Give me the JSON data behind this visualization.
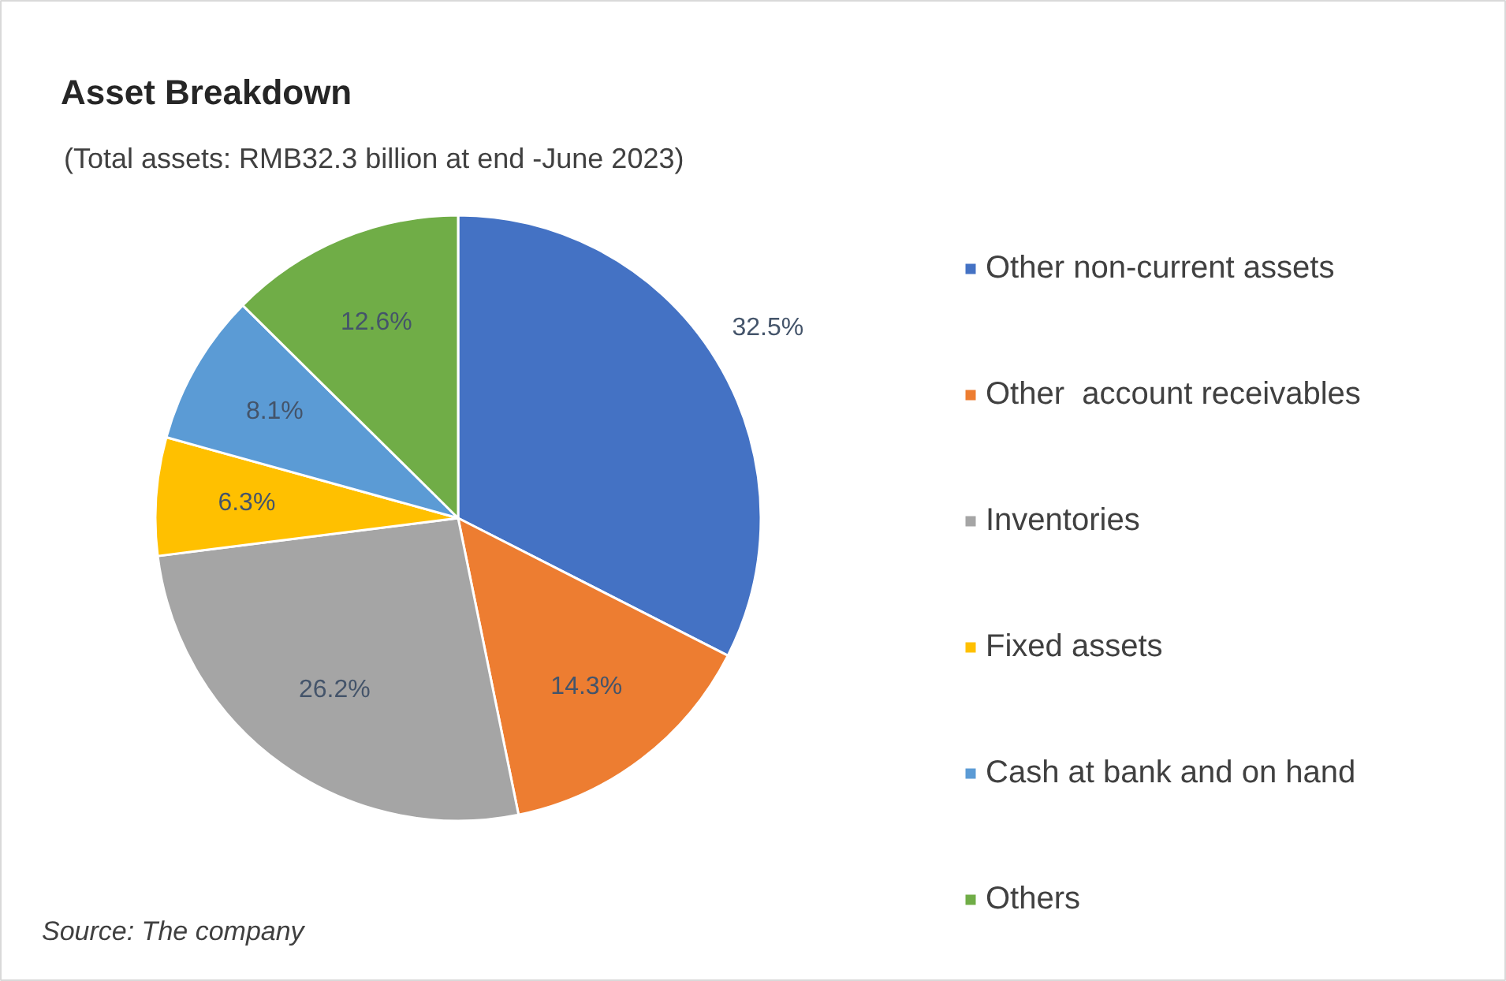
{
  "chart_data": {
    "type": "pie",
    "title": "Asset Breakdown",
    "subtitle": "(Total  assets: RMB32.3 billion at end -June 2023)",
    "categories": [
      "Other non-current assets",
      "Other  account receivables",
      "Inventories",
      "Fixed assets",
      "Cash at bank and on hand",
      "Others"
    ],
    "values": [
      32.5,
      14.3,
      26.2,
      6.3,
      8.1,
      12.6
    ],
    "colors": [
      "#4472c4",
      "#ed7d31",
      "#a5a5a5",
      "#ffc000",
      "#5b9bd5",
      "#70ad47"
    ],
    "value_labels": [
      "32.5%",
      "14.3%",
      "26.2%",
      "6.3%",
      "8.1%",
      "12.6%"
    ],
    "legend": "right",
    "annotations": [
      "Source: The company"
    ]
  }
}
